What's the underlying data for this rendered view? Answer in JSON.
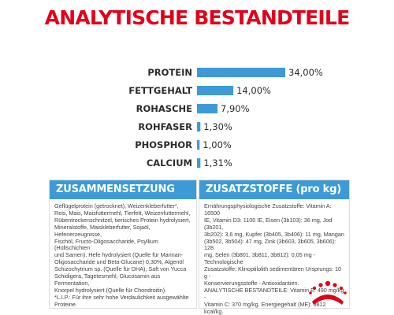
{
  "title": "ANALYTISCHE BESTANDTEILE",
  "chart_data": {
    "type": "bar",
    "orientation": "horizontal",
    "categories": [
      "PROTEIN",
      "FETTGEHALT",
      "ROHASCHE",
      "ROHFASER",
      "PHOSPHOR",
      "CALCIUM"
    ],
    "values": [
      34.0,
      14.0,
      7.9,
      1.3,
      1.0,
      1.31
    ],
    "value_labels": [
      "34,00%",
      "14,00%",
      "7,90%",
      "1,30%",
      "1,00%",
      "1,31%"
    ],
    "xlim": [
      0,
      34
    ],
    "bar_color": "#3d9ad6",
    "grid": false
  },
  "composition": {
    "heading": "ZUSAMMENSETZUNG",
    "lines": [
      "Geflügelprotein (getrocknet), Weizenkleberfutter*,",
      "Reis, Mais, Maisfuttermehl, Tierfett, Weizenfuttermehl,",
      "Rübentrockenschnitzel, tierisches Protein hydrolysiert,",
      "Mineralstoffe, Maiskleberfutter, Sojaöl, Hefenerzeugnisse,",
      "Fischöl, Fructo-Oligosaccharide, Psyllium (Hüllschichten",
      "und Samen), Hefe hydrolysiert (Quelle für Mannan-",
      "Oligosaccharide und Beta-Glucane) 0,30%, Algenöl",
      "Schizochytrium sp. (Quelle für DHA), Saft von Yucca",
      "Schidigera, Tagetesmehl, Glucosamin aus Fermentation,",
      "Knorpel hydrolysiert (Quelle für Chondroitin).",
      "*L.I.P.: Für ihre sehr hohe Verdaulichkeit ausgewählte",
      "Proteine."
    ]
  },
  "additives": {
    "heading": "ZUSATZSTOFFE (pro kg)",
    "lines": [
      "Ernährungsphysiologische Zusatzstoffe: Vitamin A: 16500",
      "IE, Vitamin D3: 1100 IE, Eisen (3b103): 36 mg, Jod (3b201,",
      "3b202): 3,6 mg, Kupfer (3b405, 3b406): 11 mg, Mangan",
      "(3b502, 3b504): 47 mg, Zink (3b603, 3b605, 3b606): 128",
      "mg, Selen (3b801, 3b811, 3b812): 0,05 mg - Technologische",
      "Zusatzstoffe: Klinoptilolith sedimentären Ursprungs: 10 g -",
      "Konservierungsstoffe - Antioxidantien.",
      "ANALYTISCHE BESTANDTEILE: Vitamin E: 490 mg/kg -",
      "Vitamin C: 370 mg/kg. Energiegehalt (ME): 3812 kcal/kg."
    ]
  },
  "colors": {
    "title": "#e2001a",
    "accent": "#3d9ad6",
    "logo": "#e2001a"
  },
  "logo": {
    "name": "royal-canin-crown-logo"
  }
}
